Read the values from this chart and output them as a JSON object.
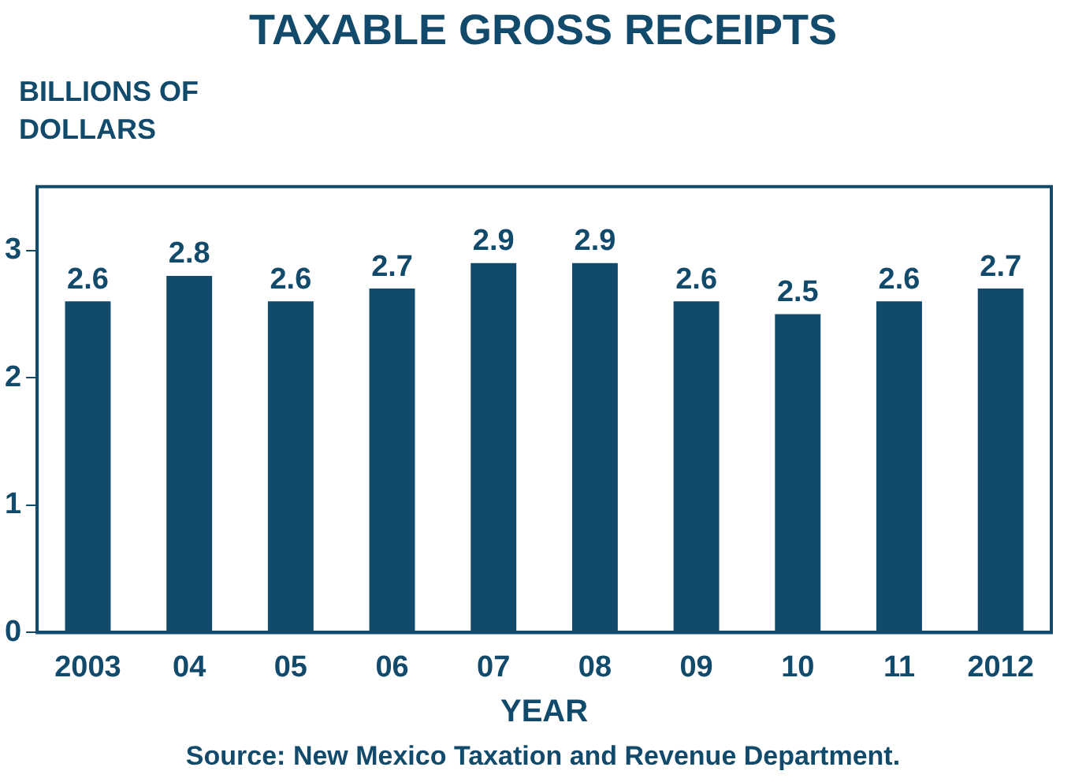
{
  "chart_data": {
    "type": "bar",
    "title": "TAXABLE GROSS RECEIPTS",
    "ylabel": "BILLIONS OF\nDOLLARS",
    "xlabel": "YEAR",
    "categories": [
      "2003",
      "04",
      "05",
      "06",
      "07",
      "08",
      "09",
      "10",
      "11",
      "2012"
    ],
    "values": [
      2.6,
      2.8,
      2.6,
      2.7,
      2.9,
      2.9,
      2.6,
      2.5,
      2.6,
      2.7
    ],
    "color": "#124a6b",
    "ylim": [
      0,
      3.5
    ],
    "yticks": [
      0,
      1,
      2,
      3
    ],
    "grid": false,
    "legend": false,
    "data_labels": true,
    "annotations": [
      "Source: New Mexico Taxation and Revenue Department."
    ]
  }
}
